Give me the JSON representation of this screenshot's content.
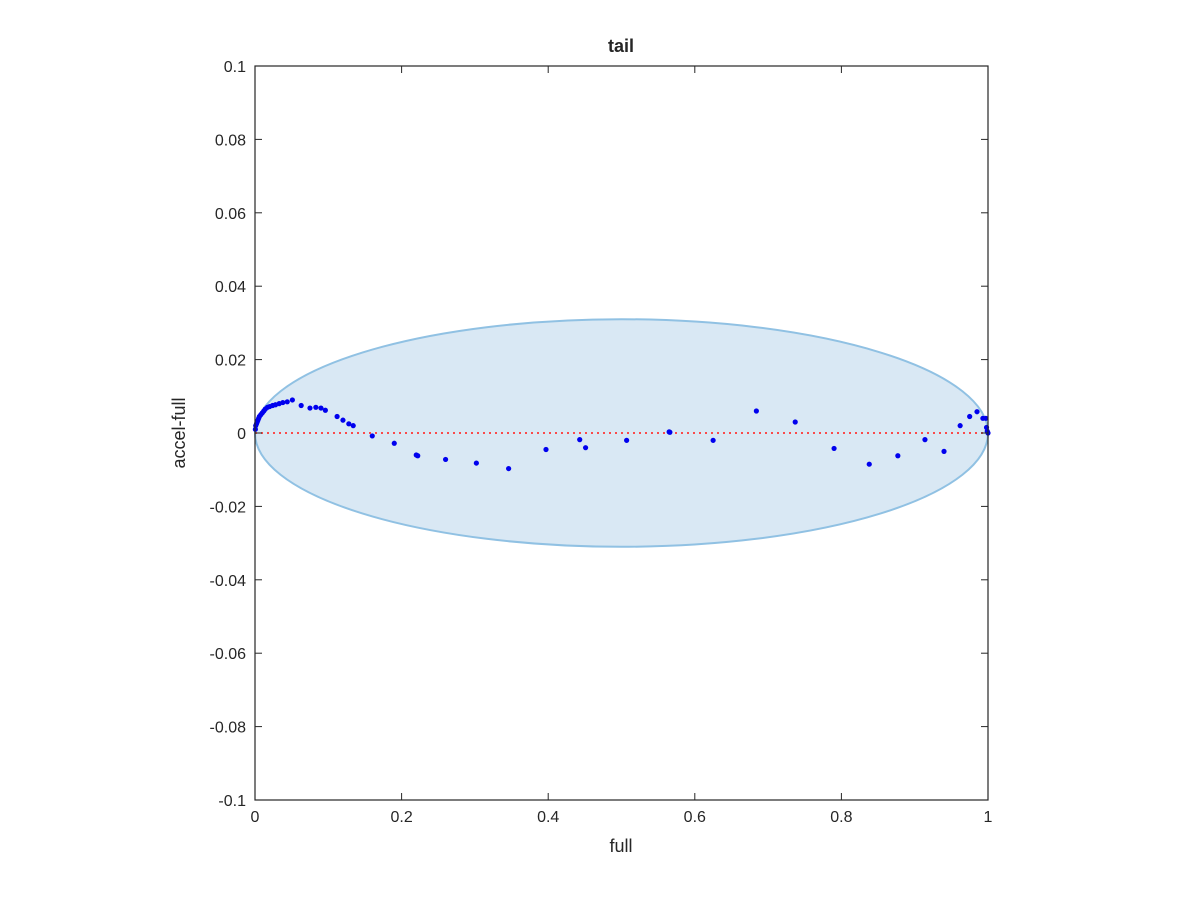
{
  "chart_data": {
    "type": "scatter",
    "title": "tail",
    "xlabel": "full",
    "ylabel": "accel-full",
    "xlim": [
      0,
      1
    ],
    "ylim": [
      -0.1,
      0.1
    ],
    "xticks": [
      0,
      0.2,
      0.4,
      0.6,
      0.8,
      1
    ],
    "xtick_labels": [
      "0",
      "0.2",
      "0.4",
      "0.6",
      "0.8",
      "1"
    ],
    "yticks": [
      -0.1,
      -0.08,
      -0.06,
      -0.04,
      -0.02,
      0,
      0.02,
      0.04,
      0.06,
      0.08,
      0.1
    ],
    "ytick_labels": [
      "-0.1",
      "-0.08",
      "-0.06",
      "-0.04",
      "-0.02",
      "0",
      "0.02",
      "0.04",
      "0.06",
      "0.08",
      "0.1"
    ],
    "grid": false,
    "reference_line": {
      "y": 0,
      "style": "dotted",
      "color": "#ff3333"
    },
    "ellipse": {
      "cx": 0.5,
      "cy": 0,
      "rx": 0.5,
      "ry": 0.031,
      "fill": "#d9e8f4",
      "stroke": "#90c1e3"
    },
    "point_color": "#0000ee",
    "points": [
      [
        0.0005,
        0.001
      ],
      [
        0.001,
        0.002
      ],
      [
        0.002,
        0.0025
      ],
      [
        0.003,
        0.003
      ],
      [
        0.004,
        0.0035
      ],
      [
        0.005,
        0.004
      ],
      [
        0.006,
        0.0045
      ],
      [
        0.008,
        0.005
      ],
      [
        0.01,
        0.0055
      ],
      [
        0.012,
        0.006
      ],
      [
        0.014,
        0.0065
      ],
      [
        0.017,
        0.007
      ],
      [
        0.02,
        0.0072
      ],
      [
        0.024,
        0.0075
      ],
      [
        0.028,
        0.0077
      ],
      [
        0.033,
        0.008
      ],
      [
        0.038,
        0.0083
      ],
      [
        0.044,
        0.0085
      ],
      [
        0.051,
        0.009
      ],
      [
        0.063,
        0.0075
      ],
      [
        0.075,
        0.0068
      ],
      [
        0.083,
        0.007
      ],
      [
        0.09,
        0.0068
      ],
      [
        0.096,
        0.0062
      ],
      [
        0.112,
        0.0045
      ],
      [
        0.12,
        0.0035
      ],
      [
        0.128,
        0.0025
      ],
      [
        0.134,
        0.002
      ],
      [
        0.16,
        -0.0008
      ],
      [
        0.19,
        -0.0028
      ],
      [
        0.22,
        -0.006
      ],
      [
        0.222,
        -0.0062
      ],
      [
        0.26,
        -0.0072
      ],
      [
        0.302,
        -0.0082
      ],
      [
        0.346,
        -0.0097
      ],
      [
        0.397,
        -0.0045
      ],
      [
        0.443,
        -0.0018
      ],
      [
        0.451,
        -0.004
      ],
      [
        0.507,
        -0.002
      ],
      [
        0.565,
        0.0003
      ],
      [
        0.566,
        0.0002
      ],
      [
        0.625,
        -0.002
      ],
      [
        0.684,
        0.006
      ],
      [
        0.737,
        0.003
      ],
      [
        0.79,
        -0.0042
      ],
      [
        0.838,
        -0.0085
      ],
      [
        0.877,
        -0.0062
      ],
      [
        0.914,
        -0.0018
      ],
      [
        0.94,
        -0.005
      ],
      [
        0.962,
        0.002
      ],
      [
        0.975,
        0.0045
      ],
      [
        0.985,
        0.0058
      ],
      [
        0.993,
        0.004
      ],
      [
        0.997,
        0.004
      ],
      [
        0.998,
        0.0015
      ],
      [
        0.999,
        0.0005
      ],
      [
        1.0,
        0.0
      ]
    ]
  }
}
